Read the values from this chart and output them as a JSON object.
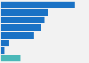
{
  "values": [
    85,
    54,
    50,
    46,
    38,
    9,
    4,
    22
  ],
  "colors": [
    "#1a72c5",
    "#1a72c5",
    "#1a72c5",
    "#1a72c5",
    "#1a72c5",
    "#1a72c5",
    "#1a72c5",
    "#4ab8b8"
  ],
  "background_color": "#f2f2f2",
  "xlim": [
    0,
    100
  ],
  "bar_height": 0.88
}
